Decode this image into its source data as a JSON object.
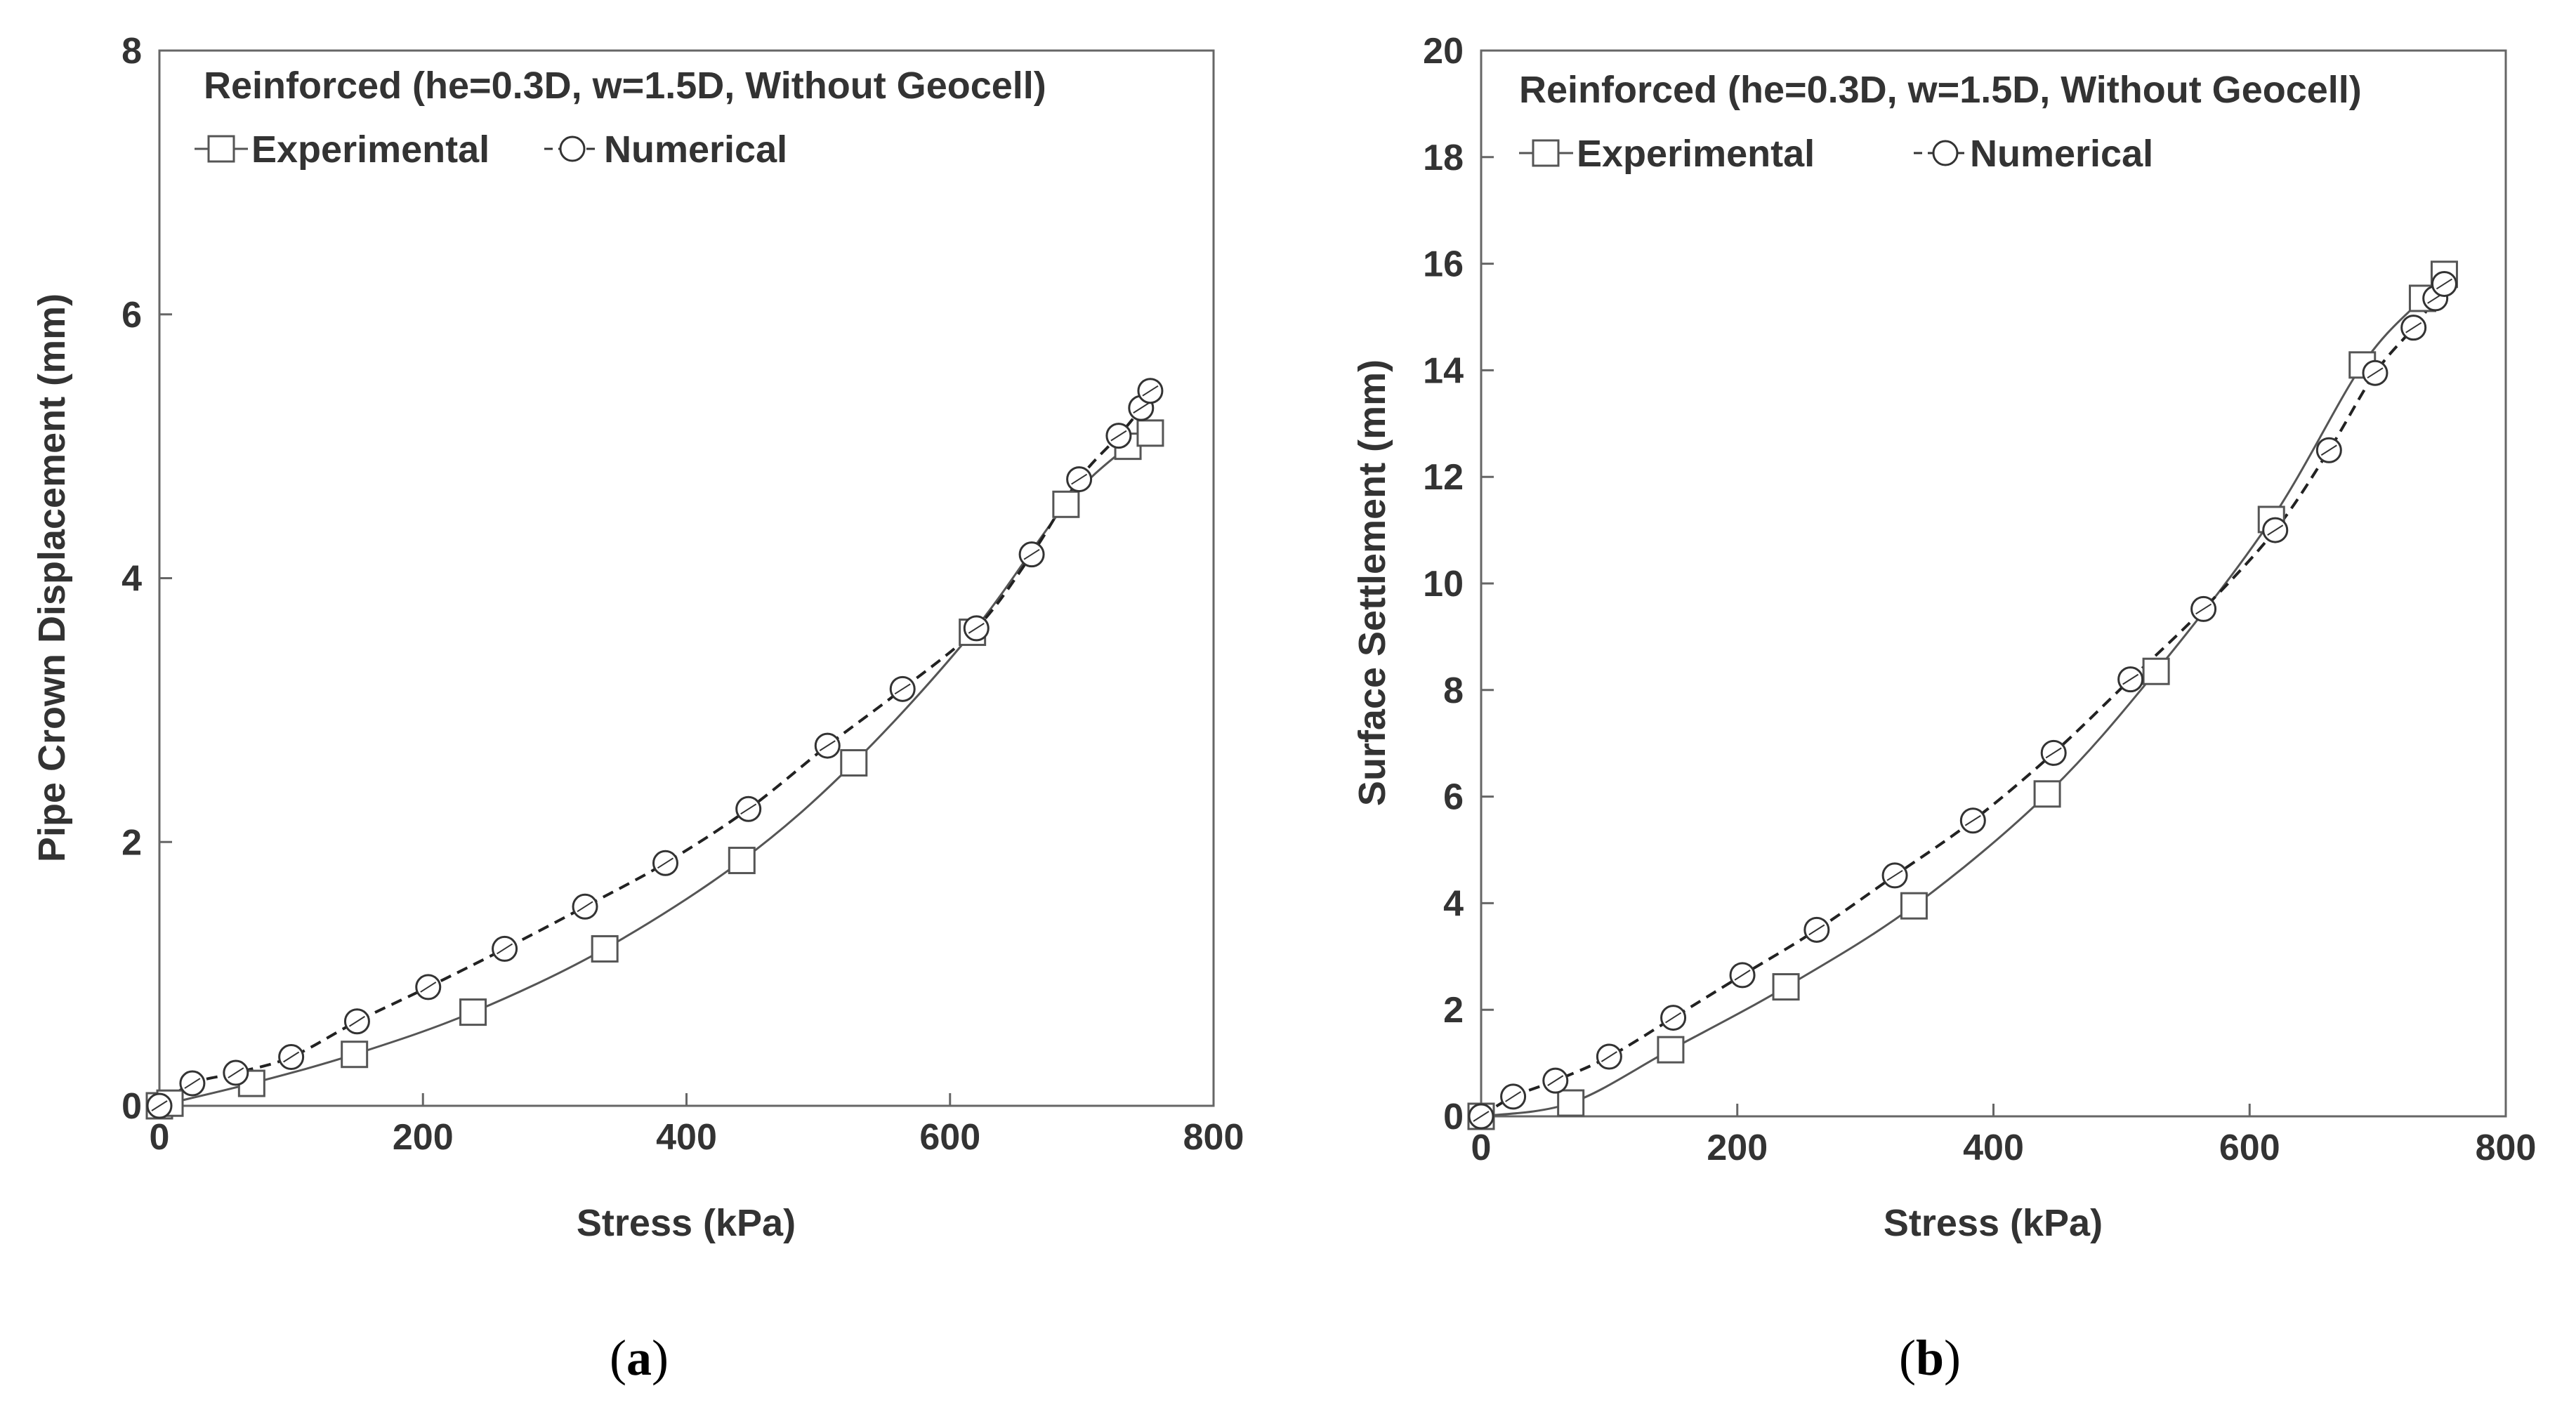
{
  "chart_data": [
    {
      "type": "line",
      "panel_label": "a",
      "title": "Reinforced (he=0.3D, w=1.5D, Without Geocell)",
      "xlabel": "Stress (kPa)",
      "ylabel": "Pipe Crown Displacement (mm)",
      "xlim": [
        0,
        800
      ],
      "ylim": [
        0,
        8
      ],
      "xticks": [
        0,
        200,
        400,
        600,
        800
      ],
      "yticks": [
        0,
        2,
        4,
        6,
        8
      ],
      "legend_position": "top-left",
      "series": [
        {
          "name": "Experimental",
          "marker": "square",
          "line": "solid",
          "x": [
            0,
            8,
            70,
            148,
            238,
            338,
            442,
            527,
            617,
            688,
            735,
            752
          ],
          "y": [
            0,
            0.02,
            0.17,
            0.39,
            0.71,
            1.19,
            1.86,
            2.6,
            3.59,
            4.56,
            5.0,
            5.1
          ]
        },
        {
          "name": "Numerical",
          "marker": "circle",
          "line": "dashed",
          "x": [
            0,
            25,
            58,
            100,
            150,
            204,
            262,
            323,
            384,
            447,
            507,
            564,
            620,
            662,
            698,
            728,
            745,
            752
          ],
          "y": [
            0,
            0.17,
            0.25,
            0.37,
            0.64,
            0.9,
            1.19,
            1.51,
            1.84,
            2.25,
            2.73,
            3.16,
            3.62,
            4.18,
            4.75,
            5.08,
            5.29,
            5.42
          ]
        }
      ]
    },
    {
      "type": "line",
      "panel_label": "b",
      "title": "Reinforced (he=0.3D, w=1.5D, Without Geocell)",
      "xlabel": "Stress (kPa)",
      "ylabel": "Surface Settlement (mm)",
      "xlim": [
        0,
        800
      ],
      "ylim": [
        0,
        20
      ],
      "xticks": [
        0,
        200,
        400,
        600,
        800
      ],
      "yticks": [
        0,
        2,
        4,
        6,
        8,
        10,
        12,
        14,
        16,
        18,
        20
      ],
      "legend_position": "top-left",
      "series": [
        {
          "name": "Experimental",
          "marker": "square",
          "line": "solid",
          "x": [
            0,
            70,
            148,
            238,
            338,
            442,
            527,
            617,
            688,
            735,
            752
          ],
          "y": [
            0,
            0.25,
            1.25,
            2.43,
            3.95,
            6.05,
            8.35,
            11.2,
            14.1,
            15.35,
            15.8
          ]
        },
        {
          "name": "Numerical",
          "marker": "circle",
          "line": "dashed",
          "x": [
            0,
            25,
            58,
            100,
            150,
            204,
            262,
            323,
            384,
            447,
            507,
            564,
            620,
            662,
            698,
            728,
            745,
            752
          ],
          "y": [
            0,
            0.37,
            0.67,
            1.12,
            1.85,
            2.65,
            3.5,
            4.52,
            5.55,
            6.82,
            8.2,
            9.52,
            11.0,
            12.5,
            13.95,
            14.8,
            15.35,
            15.62
          ]
        }
      ]
    }
  ]
}
